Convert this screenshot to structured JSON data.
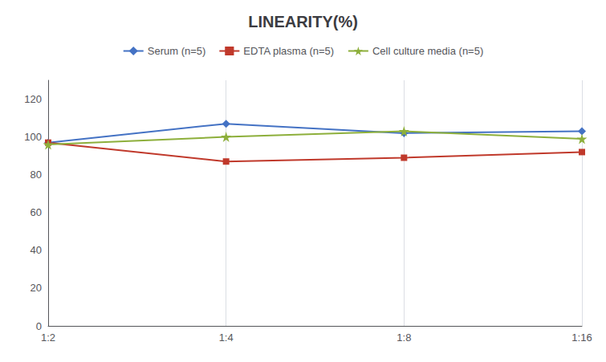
{
  "chart_data": {
    "type": "line",
    "title": "LINEARITY(%)",
    "categories": [
      "1:2",
      "1:4",
      "1:8",
      "1:16"
    ],
    "series": [
      {
        "name": "Serum (n=5)",
        "color": "#4472C4",
        "marker": "diamond",
        "values": [
          97,
          107,
          102,
          103
        ]
      },
      {
        "name": "EDTA plasma (n=5)",
        "color": "#C0392B",
        "marker": "square",
        "values": [
          97,
          87,
          89,
          92
        ]
      },
      {
        "name": "Cell culture media (n=5)",
        "color": "#8DAF3B",
        "marker": "star",
        "values": [
          96,
          100,
          103,
          99
        ]
      }
    ],
    "ylim": [
      0,
      130
    ],
    "yticks": [
      0,
      20,
      40,
      60,
      80,
      100,
      120
    ],
    "grid": "x",
    "legend": "top"
  }
}
